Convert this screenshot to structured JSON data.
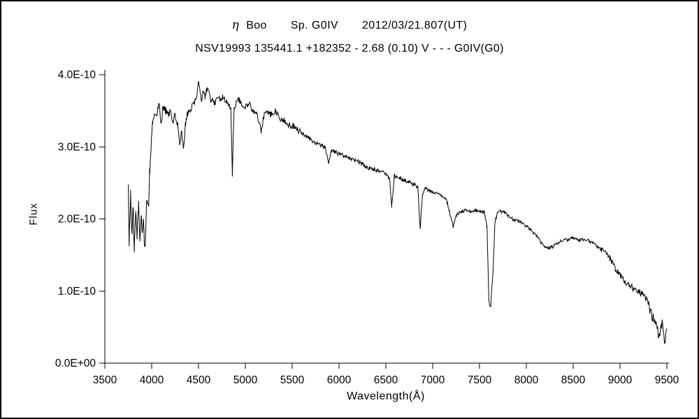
{
  "chart_data": {
    "type": "line",
    "title": "η Boo  Sp. G0IV  2012/03/21.807(UT)",
    "title_parts": {
      "greek": "η",
      "star": "Boo",
      "spectral": "Sp. G0IV",
      "date": "2012/03/21.807(UT)"
    },
    "subtitle": "NSV19993 135441.1 +182352 - 2.68 (0.10) V - - - G0IV(G0)",
    "xlabel": "Wavelength(Å)",
    "ylabel": "Flux",
    "xlim": [
      3500,
      9500
    ],
    "ylim": [
      0,
      4
    ],
    "y_value_scale": "1e-10",
    "x_ticks": [
      3500,
      4000,
      4500,
      5000,
      5500,
      6000,
      6500,
      7000,
      7500,
      8000,
      8500,
      9000,
      9500
    ],
    "y_ticks": [
      {
        "value": 0,
        "label": "0.0E+00"
      },
      {
        "value": 1,
        "label": "1.0E-10"
      },
      {
        "value": 2,
        "label": "2.0E-10"
      },
      {
        "value": 3,
        "label": "3.0E-10"
      },
      {
        "value": 4,
        "label": "4.0E-10"
      }
    ],
    "grid": false,
    "legend": "none",
    "line_color": "#000000",
    "background": "#ffffff",
    "series": [
      {
        "name": "eta Boo spectrum",
        "points": [
          [
            3750,
            2.4
          ],
          [
            3760,
            1.7
          ],
          [
            3775,
            2.35
          ],
          [
            3790,
            1.75
          ],
          [
            3800,
            2.2
          ],
          [
            3815,
            1.62
          ],
          [
            3830,
            2.1
          ],
          [
            3845,
            1.75
          ],
          [
            3860,
            2.25
          ],
          [
            3875,
            1.65
          ],
          [
            3890,
            2.1
          ],
          [
            3900,
            1.78
          ],
          [
            3910,
            2.0
          ],
          [
            3920,
            1.7
          ],
          [
            3933,
            1.62
          ],
          [
            3945,
            2.15
          ],
          [
            3955,
            2.3
          ],
          [
            3968,
            2.18
          ],
          [
            3980,
            2.7
          ],
          [
            3995,
            3.05
          ],
          [
            4010,
            3.35
          ],
          [
            4030,
            3.5
          ],
          [
            4050,
            3.45
          ],
          [
            4070,
            3.55
          ],
          [
            4085,
            3.6
          ],
          [
            4101,
            3.28
          ],
          [
            4115,
            3.5
          ],
          [
            4130,
            3.55
          ],
          [
            4150,
            3.5
          ],
          [
            4180,
            3.45
          ],
          [
            4200,
            3.5
          ],
          [
            4227,
            3.35
          ],
          [
            4250,
            3.45
          ],
          [
            4280,
            3.3
          ],
          [
            4300,
            3.05
          ],
          [
            4320,
            3.2
          ],
          [
            4340,
            2.95
          ],
          [
            4360,
            3.3
          ],
          [
            4380,
            3.45
          ],
          [
            4400,
            3.5
          ],
          [
            4430,
            3.55
          ],
          [
            4460,
            3.6
          ],
          [
            4480,
            3.7
          ],
          [
            4500,
            3.9
          ],
          [
            4515,
            3.75
          ],
          [
            4530,
            3.65
          ],
          [
            4550,
            3.75
          ],
          [
            4570,
            3.7
          ],
          [
            4590,
            3.8
          ],
          [
            4610,
            3.75
          ],
          [
            4630,
            3.65
          ],
          [
            4650,
            3.7
          ],
          [
            4670,
            3.6
          ],
          [
            4700,
            3.7
          ],
          [
            4730,
            3.65
          ],
          [
            4760,
            3.7
          ],
          [
            4790,
            3.65
          ],
          [
            4820,
            3.6
          ],
          [
            4845,
            3.55
          ],
          [
            4861,
            2.62
          ],
          [
            4880,
            3.55
          ],
          [
            4900,
            3.6
          ],
          [
            4930,
            3.65
          ],
          [
            4960,
            3.6
          ],
          [
            5000,
            3.55
          ],
          [
            5040,
            3.6
          ],
          [
            5080,
            3.5
          ],
          [
            5120,
            3.45
          ],
          [
            5170,
            3.22
          ],
          [
            5200,
            3.45
          ],
          [
            5230,
            3.5
          ],
          [
            5270,
            3.45
          ],
          [
            5320,
            3.5
          ],
          [
            5370,
            3.4
          ],
          [
            5420,
            3.35
          ],
          [
            5460,
            3.3
          ],
          [
            5500,
            3.3
          ],
          [
            5550,
            3.25
          ],
          [
            5600,
            3.2
          ],
          [
            5650,
            3.15
          ],
          [
            5700,
            3.1
          ],
          [
            5750,
            3.05
          ],
          [
            5800,
            3.02
          ],
          [
            5850,
            3.0
          ],
          [
            5890,
            2.78
          ],
          [
            5920,
            2.95
          ],
          [
            5960,
            2.93
          ],
          [
            6000,
            2.9
          ],
          [
            6050,
            2.88
          ],
          [
            6100,
            2.85
          ],
          [
            6150,
            2.82
          ],
          [
            6200,
            2.8
          ],
          [
            6250,
            2.76
          ],
          [
            6300,
            2.72
          ],
          [
            6350,
            2.7
          ],
          [
            6400,
            2.68
          ],
          [
            6450,
            2.66
          ],
          [
            6500,
            2.62
          ],
          [
            6540,
            2.56
          ],
          [
            6563,
            2.18
          ],
          [
            6590,
            2.6
          ],
          [
            6630,
            2.58
          ],
          [
            6680,
            2.55
          ],
          [
            6720,
            2.52
          ],
          [
            6760,
            2.5
          ],
          [
            6800,
            2.48
          ],
          [
            6840,
            2.44
          ],
          [
            6867,
            1.85
          ],
          [
            6890,
            2.35
          ],
          [
            6920,
            2.42
          ],
          [
            6960,
            2.4
          ],
          [
            7000,
            2.38
          ],
          [
            7050,
            2.35
          ],
          [
            7100,
            2.32
          ],
          [
            7150,
            2.25
          ],
          [
            7180,
            2.1
          ],
          [
            7220,
            1.9
          ],
          [
            7250,
            2.05
          ],
          [
            7300,
            2.1
          ],
          [
            7350,
            2.12
          ],
          [
            7400,
            2.1
          ],
          [
            7450,
            2.12
          ],
          [
            7500,
            2.1
          ],
          [
            7550,
            2.1
          ],
          [
            7580,
            1.9
          ],
          [
            7600,
            0.85
          ],
          [
            7620,
            0.8
          ],
          [
            7645,
            1.3
          ],
          [
            7665,
            1.95
          ],
          [
            7690,
            2.08
          ],
          [
            7720,
            2.1
          ],
          [
            7760,
            2.1
          ],
          [
            7800,
            2.05
          ],
          [
            7850,
            2.0
          ],
          [
            7900,
            1.98
          ],
          [
            7950,
            1.95
          ],
          [
            8000,
            1.9
          ],
          [
            8050,
            1.85
          ],
          [
            8100,
            1.78
          ],
          [
            8150,
            1.68
          ],
          [
            8200,
            1.62
          ],
          [
            8250,
            1.6
          ],
          [
            8300,
            1.63
          ],
          [
            8350,
            1.68
          ],
          [
            8400,
            1.7
          ],
          [
            8450,
            1.72
          ],
          [
            8500,
            1.73
          ],
          [
            8550,
            1.7
          ],
          [
            8600,
            1.72
          ],
          [
            8650,
            1.7
          ],
          [
            8700,
            1.68
          ],
          [
            8750,
            1.62
          ],
          [
            8800,
            1.58
          ],
          [
            8850,
            1.52
          ],
          [
            8900,
            1.45
          ],
          [
            8950,
            1.32
          ],
          [
            9000,
            1.22
          ],
          [
            9050,
            1.12
          ],
          [
            9100,
            1.08
          ],
          [
            9150,
            1.02
          ],
          [
            9200,
            1.0
          ],
          [
            9250,
            0.95
          ],
          [
            9300,
            0.85
          ],
          [
            9350,
            0.62
          ],
          [
            9390,
            0.5
          ],
          [
            9420,
            0.38
          ],
          [
            9450,
            0.55
          ],
          [
            9480,
            0.3
          ],
          [
            9500,
            0.45
          ]
        ]
      }
    ],
    "noise": {
      "seed": 20120321,
      "step": 6,
      "regions": [
        {
          "from": 3750,
          "to": 3980,
          "amp": 0.09
        },
        {
          "from": 3980,
          "to": 4500,
          "amp": 0.05
        },
        {
          "from": 4500,
          "to": 5600,
          "amp": 0.045
        },
        {
          "from": 5600,
          "to": 6800,
          "amp": 0.03
        },
        {
          "from": 6800,
          "to": 7550,
          "amp": 0.025
        },
        {
          "from": 7550,
          "to": 7700,
          "amp": 0.03
        },
        {
          "from": 7700,
          "to": 8800,
          "amp": 0.025
        },
        {
          "from": 8800,
          "to": 9300,
          "amp": 0.05
        },
        {
          "from": 9300,
          "to": 9500,
          "amp": 0.08
        }
      ]
    }
  }
}
